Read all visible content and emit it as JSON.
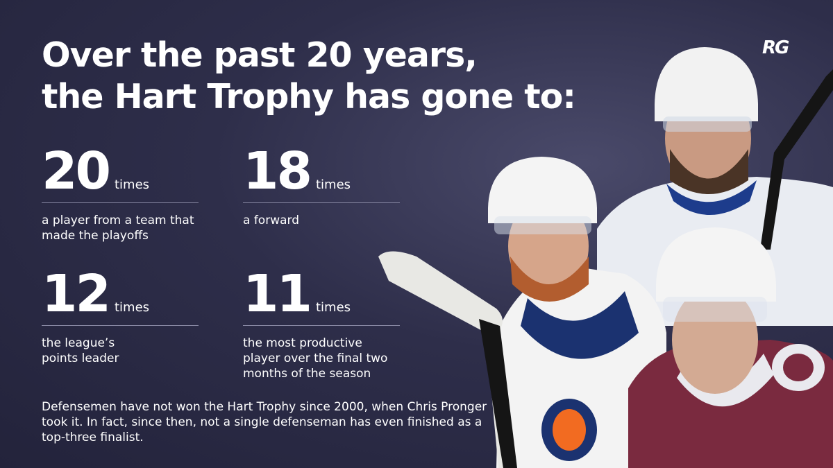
{
  "logo": "RG",
  "title_lines": [
    "Over the past 20 years,",
    "the Hart Trophy has gone to:"
  ],
  "stats": [
    {
      "number": 20,
      "unit": "times",
      "description": "a player from a team that made the playoffs"
    },
    {
      "number": 18,
      "unit": "times",
      "description": "a forward"
    },
    {
      "number": 12,
      "unit": "times",
      "description": "the league’s points leader"
    },
    {
      "number": 11,
      "unit": "times",
      "description": "the most productive player over the final two months of the season"
    }
  ],
  "footnote": "Defensemen have not won the Hart Trophy since 2000, when Chris Pronger took it. In fact, since then, not a single defenseman has even finished as a top-three finalist."
}
